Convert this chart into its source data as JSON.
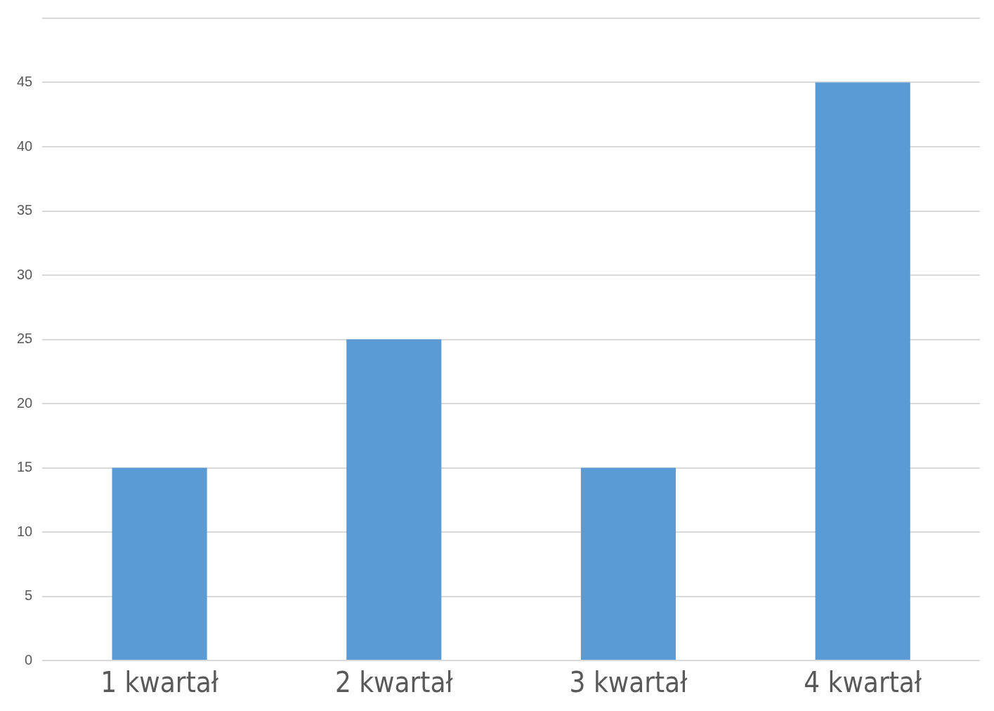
{
  "chart_data": {
    "type": "bar",
    "categories": [
      "1 kwartał",
      "2 kwartał",
      "3 kwartał",
      "4 kwartał"
    ],
    "values": [
      15,
      25,
      15,
      45
    ],
    "color": "#5b9bd5",
    "ylim": [
      0,
      50
    ],
    "yticks": [
      0,
      5,
      10,
      15,
      20,
      25,
      30,
      35,
      40,
      45,
      {
        "value": 50,
        "label": null
      }
    ],
    "grid": "y",
    "legend": false
  }
}
